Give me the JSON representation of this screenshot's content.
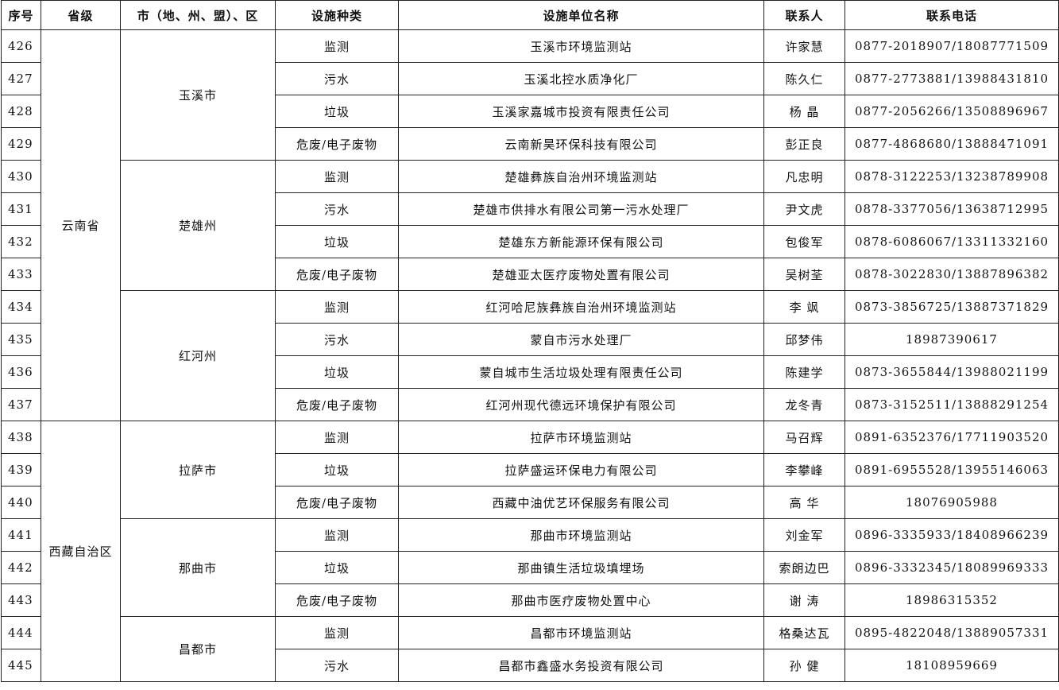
{
  "header": [
    "序号",
    "省级",
    "市（地、州、盟）、区",
    "设施种类",
    "设施单位名称",
    "联系人",
    "联系电话"
  ],
  "provinces": [
    {
      "name": "云南省",
      "cities": [
        {
          "name": "玉溪市",
          "rows": [
            [
              426,
              "监测",
              "玉溪市环境监测站",
              "许家慧",
              "0877-2018907/18087771509"
            ],
            [
              427,
              "污水",
              "玉溪北控水质净化厂",
              "陈久仁",
              "0877-2773881/13988431810"
            ],
            [
              428,
              "垃圾",
              "玉溪家嘉城市投资有限责任公司",
              "杨 晶",
              "0877-2056266/13508896967"
            ],
            [
              429,
              "危废/电子废物",
              "云南新昊环保科技有限公司",
              "彭正良",
              "0877-4868680/13888471091"
            ]
          ]
        },
        {
          "name": "楚雄州",
          "rows": [
            [
              430,
              "监测",
              "楚雄彝族自治州环境监测站",
              "凡忠明",
              "0878-3122253/13238789908"
            ],
            [
              431,
              "污水",
              "楚雄市供排水有限公司第一污水处理厂",
              "尹文虎",
              "0878-3377056/13638712995"
            ],
            [
              432,
              "垃圾",
              "楚雄东方新能源环保有限公司",
              "包俊军",
              "0878-6086067/13311332160"
            ],
            [
              433,
              "危废/电子废物",
              "楚雄亚太医疗废物处置有限公司",
              "吴树荃",
              "0878-3022830/13887896382"
            ]
          ]
        },
        {
          "name": "红河州",
          "rows": [
            [
              434,
              "监测",
              "红河哈尼族彝族自治州环境监测站",
              "李 飒",
              "0873-3856725/13887371829"
            ],
            [
              435,
              "污水",
              "蒙自市污水处理厂",
              "邱梦伟",
              "18987390617"
            ],
            [
              436,
              "垃圾",
              "蒙自城市生活垃圾处理有限责任公司",
              "陈建学",
              "0873-3655844/13988021199"
            ],
            [
              437,
              "危废/电子废物",
              "红河州现代德远环境保护有限公司",
              "龙冬青",
              "0873-3152511/13888291254"
            ]
          ]
        }
      ]
    },
    {
      "name": "西藏自治区",
      "cities": [
        {
          "name": "拉萨市",
          "rows": [
            [
              438,
              "监测",
              "拉萨市环境监测站",
              "马召辉",
              "0891-6352376/17711903520"
            ],
            [
              439,
              "垃圾",
              "拉萨盛运环保电力有限公司",
              "李攀峰",
              "0891-6955528/13955146063"
            ],
            [
              440,
              "危废/电子废物",
              "西藏中油优艺环保服务有限公司",
              "高 华",
              "18076905988"
            ]
          ]
        },
        {
          "name": "那曲市",
          "rows": [
            [
              441,
              "监测",
              "那曲市环境监测站",
              "刘金军",
              "0896-3335933/18408966239"
            ],
            [
              442,
              "垃圾",
              "那曲镇生活垃圾填埋场",
              "索朗边巴",
              "0896-3332345/18089969333"
            ],
            [
              443,
              "危废/电子废物",
              "那曲市医疗废物处置中心",
              "谢 涛",
              "18986315352"
            ]
          ]
        },
        {
          "name": "昌都市",
          "rows": [
            [
              444,
              "监测",
              "昌都市环境监测站",
              "格桑达瓦",
              "0895-4822048/13889057331"
            ],
            [
              445,
              "污水",
              "昌都市鑫盛水务投资有限公司",
              "孙 健",
              "18108959669"
            ]
          ]
        }
      ]
    }
  ]
}
